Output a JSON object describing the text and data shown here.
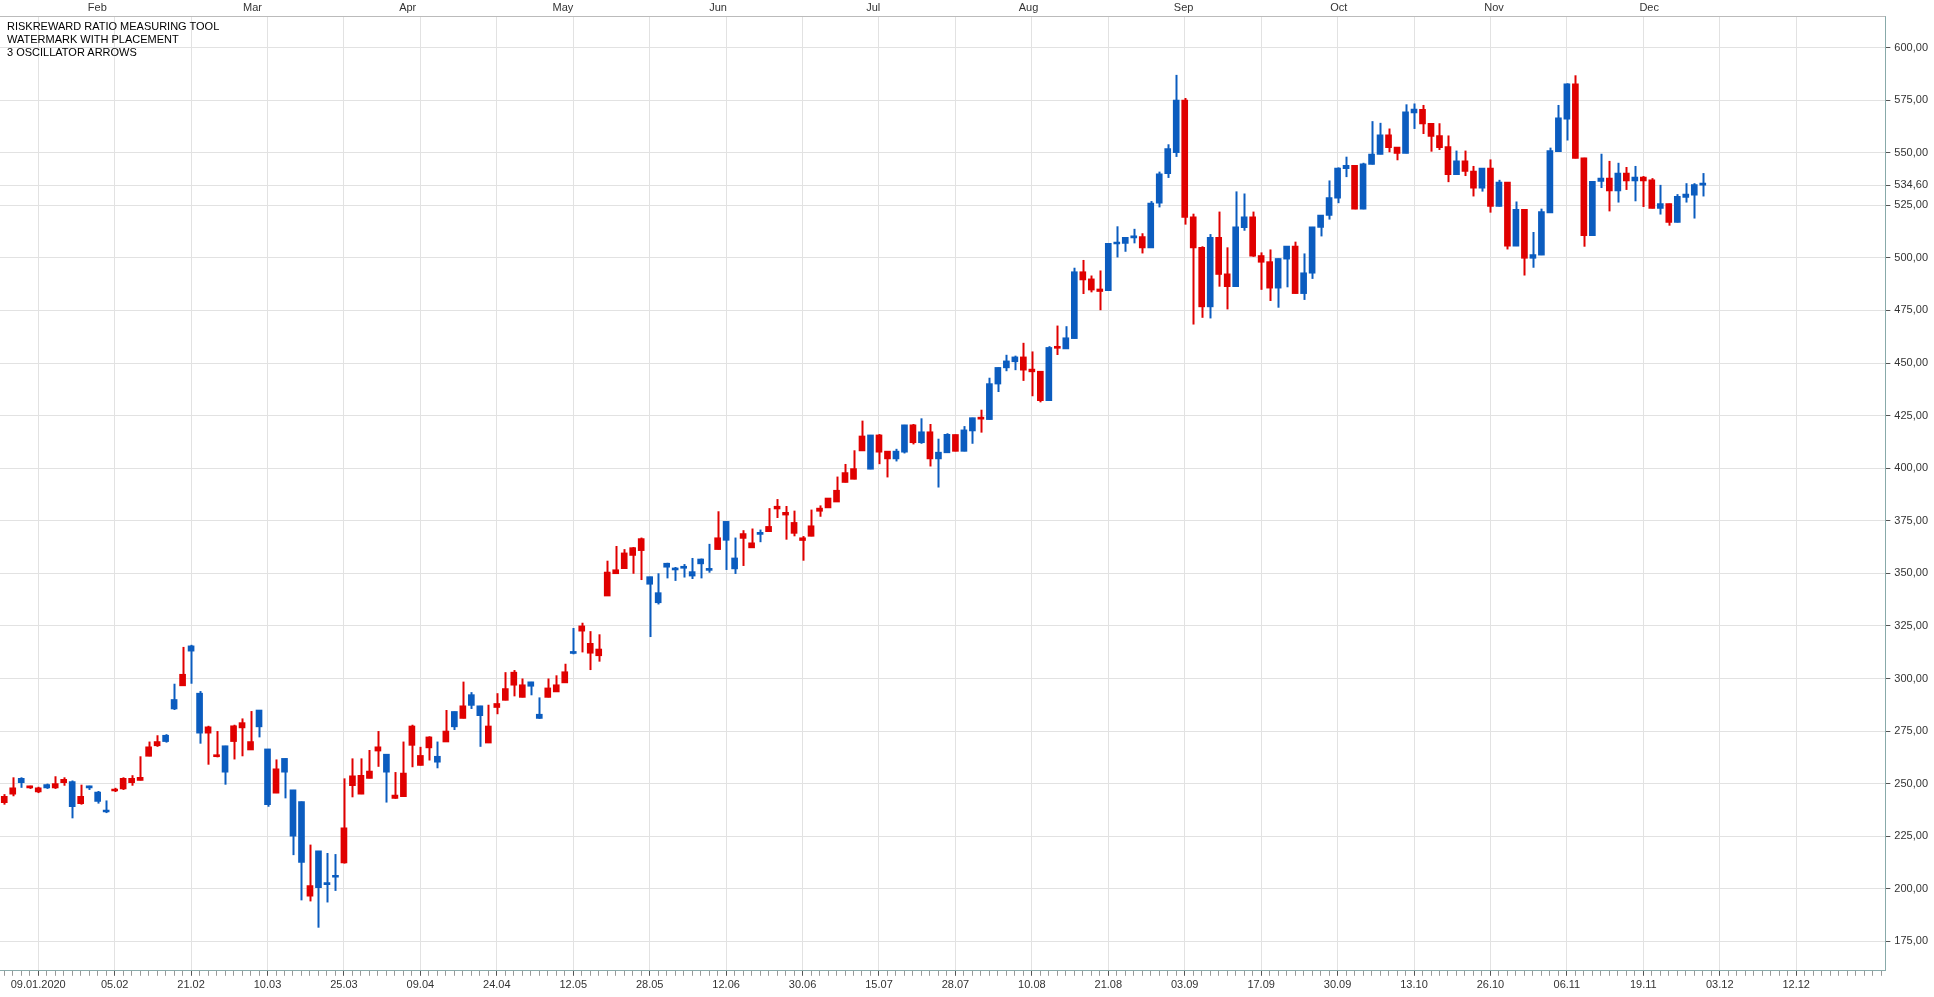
{
  "chart_data": {
    "type": "candlestick",
    "subtitle": "RISKREWARD RATIO MEASURING TOOL\nWATERMARK WITH PLACEMENT\n3 OSCILLATOR ARROWS",
    "annotations": [
      "Feb",
      "Mar",
      "Apr",
      "May",
      "Jun",
      "Jul",
      "Aug",
      "Sep",
      "Oct",
      "Nov",
      "Dec"
    ],
    "categories": [
      null,
      null,
      null,
      null,
      "09.01.2020",
      null,
      null,
      null,
      null,
      null,
      null,
      null,
      null,
      "05.02",
      null,
      null,
      null,
      null,
      null,
      null,
      null,
      null,
      "21.02",
      null,
      null,
      null,
      null,
      null,
      null,
      null,
      null,
      "10.03",
      null,
      null,
      null,
      null,
      null,
      null,
      null,
      null,
      "25.03",
      null,
      null,
      null,
      null,
      null,
      null,
      null,
      null,
      "09.04",
      null,
      null,
      null,
      null,
      null,
      null,
      null,
      null,
      "24.04",
      null,
      null,
      null,
      null,
      null,
      null,
      null,
      null,
      "12.05",
      null,
      null,
      null,
      null,
      null,
      null,
      null,
      null,
      "28.05",
      null,
      null,
      null,
      null,
      null,
      null,
      null,
      null,
      "12.06",
      null,
      null,
      null,
      null,
      null,
      null,
      null,
      null,
      "30.06",
      null,
      null,
      null,
      null,
      null,
      null,
      null,
      null,
      "15.07",
      null,
      null,
      null,
      null,
      null,
      null,
      null,
      null,
      "28.07",
      null,
      null,
      null,
      null,
      null,
      null,
      null,
      null,
      "10.08",
      null,
      null,
      null,
      null,
      null,
      null,
      null,
      null,
      "21.08",
      null,
      null,
      null,
      null,
      null,
      null,
      null,
      null,
      "03.09",
      null,
      null,
      null,
      null,
      null,
      null,
      null,
      null,
      "17.09",
      null,
      null,
      null,
      null,
      null,
      null,
      null,
      null,
      "30.09",
      null,
      null,
      null,
      null,
      null,
      null,
      null,
      null,
      "13.10",
      null,
      null,
      null,
      null,
      null,
      null,
      null,
      null,
      "26.10",
      null,
      null,
      null,
      null,
      null,
      null,
      null,
      null,
      "06.11",
      null,
      null,
      null,
      null,
      null,
      null,
      null,
      null,
      "19.11",
      null,
      null,
      null,
      null,
      null,
      null,
      null,
      null,
      "03.12",
      null,
      null,
      null,
      null,
      null,
      null,
      null,
      null,
      "12.12",
      null,
      null,
      null,
      null,
      null,
      null,
      null,
      null,
      null,
      null
    ],
    "ohlc": [
      [
        241,
        245,
        240,
        244
      ],
      [
        245,
        253,
        244,
        248
      ],
      [
        252.5,
        253,
        248,
        250.5
      ],
      [
        248,
        249,
        247.5,
        248.5
      ],
      [
        246,
        248.5,
        245.5,
        248
      ],
      [
        249.5,
        250,
        247.5,
        248
      ],
      [
        248,
        253.5,
        247.5,
        250
      ],
      [
        250.5,
        253,
        249,
        252
      ],
      [
        251,
        251.5,
        233.5,
        239
      ],
      [
        240.5,
        249.5,
        240,
        244
      ],
      [
        248.5,
        249,
        247,
        248
      ],
      [
        246,
        246.5,
        240.5,
        241.5
      ],
      [
        237,
        242,
        236,
        236.5
      ],
      [
        246.5,
        248,
        246,
        247
      ],
      [
        247.5,
        253,
        247,
        252.5
      ],
      [
        250.5,
        254,
        249,
        252.5
      ],
      [
        251.5,
        263,
        251.5,
        253
      ],
      [
        263,
        270,
        263,
        267.5
      ],
      [
        268,
        273,
        267.5,
        270
      ],
      [
        273,
        273.5,
        269.5,
        270
      ],
      [
        290,
        297.5,
        285,
        285.5
      ],
      [
        296.5,
        315,
        296.5,
        302
      ],
      [
        315.5,
        316,
        297.5,
        313
      ],
      [
        293,
        294,
        269,
        274
      ],
      [
        274,
        277.5,
        259,
        277
      ],
      [
        262.8,
        275,
        262.5,
        263.5
      ],
      [
        268,
        268,
        249.5,
        255.5
      ],
      [
        270,
        278,
        261.5,
        277.5
      ],
      [
        276.5,
        281,
        263,
        279
      ],
      [
        266,
        284.5,
        266,
        270
      ],
      [
        285,
        285,
        272,
        277
      ],
      [
        266.5,
        266.5,
        239,
        240
      ],
      [
        245.5,
        261.5,
        245.5,
        257
      ],
      [
        262,
        262,
        243,
        255.5
      ],
      [
        247,
        247,
        216,
        225
      ],
      [
        241.5,
        241.5,
        194.5,
        212.5
      ],
      [
        196.5,
        221,
        194,
        201.5
      ],
      [
        218,
        218,
        181.5,
        200.5
      ],
      [
        203,
        217,
        193.5,
        202
      ],
      [
        206,
        216.5,
        199,
        205.5
      ],
      [
        212.3,
        252.5,
        212,
        229
      ],
      [
        249,
        262,
        243.5,
        253.7
      ],
      [
        245,
        262,
        245,
        254
      ],
      [
        252.5,
        266,
        252.5,
        256
      ],
      [
        265.5,
        275,
        258,
        267.5
      ],
      [
        264,
        264,
        241,
        255.5
      ],
      [
        243,
        255.5,
        242.8,
        244.6
      ],
      [
        243.8,
        270,
        243.8,
        255
      ],
      [
        268.2,
        278,
        257.8,
        277.4
      ],
      [
        258.6,
        267.5,
        258.6,
        263.4
      ],
      [
        267,
        272.5,
        261,
        272.2
      ],
      [
        263,
        270,
        257.3,
        260.2
      ],
      [
        269.8,
        285,
        269.8,
        275
      ],
      [
        284.3,
        284.3,
        275.5,
        277
      ],
      [
        281,
        298.5,
        281,
        287
      ],
      [
        292.3,
        293.5,
        285.5,
        287.2
      ],
      [
        287,
        287,
        267.5,
        282.3
      ],
      [
        269.3,
        287.5,
        269.3,
        277.4
      ],
      [
        286.2,
        293,
        283,
        288.1
      ],
      [
        289.6,
        303,
        289.6,
        295.2
      ],
      [
        296.8,
        304,
        291.5,
        303
      ],
      [
        291,
        300,
        291,
        297
      ],
      [
        298.4,
        298.4,
        292,
        296.3
      ],
      [
        283,
        291,
        280.8,
        281
      ],
      [
        291,
        300,
        291,
        295.5
      ],
      [
        293.6,
        301.5,
        293.6,
        297
      ],
      [
        297.9,
        307,
        297.9,
        303.2
      ],
      [
        312.7,
        324,
        311.5,
        311.9
      ],
      [
        322.5,
        326.5,
        312.4,
        325
      ],
      [
        312,
        322.5,
        304,
        316.7
      ],
      [
        310.8,
        321,
        308,
        314
      ],
      [
        339.2,
        356,
        339.2,
        350.6
      ],
      [
        349.8,
        363,
        349.8,
        351.7
      ],
      [
        352.2,
        361.5,
        352.2,
        359.7
      ],
      [
        358.5,
        362.5,
        349.8,
        362.2
      ],
      [
        360.8,
        367,
        346.8,
        366.5
      ],
      [
        348.4,
        348.4,
        319.7,
        344.8
      ],
      [
        340.8,
        350,
        335.2,
        336
      ],
      [
        354.8,
        355,
        347.6,
        352.9
      ],
      [
        352.4,
        353,
        346.4,
        351.6
      ],
      [
        353,
        354.4,
        348,
        352.4
      ],
      [
        350.8,
        357.3,
        347.3,
        348.7
      ],
      [
        356.8,
        357,
        347.6,
        354.5
      ],
      [
        351.9,
        364,
        350.3,
        351.4
      ],
      [
        361.3,
        379.5,
        361.3,
        366.9
      ],
      [
        374.7,
        374.7,
        351.6,
        365.7
      ],
      [
        357.3,
        367,
        349.7,
        352.1
      ],
      [
        366.6,
        370.5,
        353.5,
        368.9
      ],
      [
        362.1,
        371.3,
        362.1,
        364.5
      ],
      [
        369.5,
        370.8,
        364.8,
        368.5
      ],
      [
        369.8,
        381,
        369.8,
        372.3
      ],
      [
        380.6,
        385.3,
        376.3,
        381.9
      ],
      [
        377.7,
        382,
        366,
        379
      ],
      [
        369,
        379.8,
        367.6,
        374.2
      ],
      [
        365.6,
        367.7,
        356,
        366.9
      ],
      [
        367.6,
        380.3,
        367.6,
        372.6
      ],
      [
        379.5,
        382.3,
        376.9,
        381
      ],
      [
        381.1,
        385.8,
        381.1,
        385.8
      ],
      [
        383.9,
        396,
        383.9,
        389.5
      ],
      [
        393.2,
        402,
        393.2,
        397.9
      ],
      [
        394.7,
        408.5,
        394.7,
        399.8
      ],
      [
        408.2,
        422.6,
        408.2,
        415.3
      ],
      [
        415.8,
        415.8,
        399.5,
        399.5
      ],
      [
        407.6,
        416.2,
        401.9,
        415.8
      ],
      [
        404.4,
        408.1,
        395.6,
        408.1
      ],
      [
        408.1,
        409.2,
        403.2,
        404.4
      ],
      [
        420.6,
        420.6,
        407,
        407.6
      ],
      [
        412.1,
        421,
        411.3,
        420.6
      ],
      [
        417.3,
        423.7,
        411.6,
        412.1
      ],
      [
        404.4,
        421,
        400.8,
        417.3
      ],
      [
        407.6,
        414,
        390.8,
        404.4
      ],
      [
        416.1,
        416.6,
        407.3,
        407.3
      ],
      [
        408,
        416,
        408,
        416
      ],
      [
        418.2,
        420,
        408,
        408
      ],
      [
        424,
        424,
        411.6,
        417.7
      ],
      [
        423.3,
        427.8,
        416.9,
        424.1
      ],
      [
        440.2,
        443,
        423.1,
        423.1
      ],
      [
        447.9,
        447.9,
        436.2,
        440
      ],
      [
        451,
        453.9,
        446.1,
        447.7
      ],
      [
        452.9,
        453.5,
        446.6,
        450.6
      ],
      [
        446.6,
        459.6,
        441.5,
        452.9
      ],
      [
        445.8,
        455.5,
        434.2,
        447.1
      ],
      [
        432.1,
        446.1,
        431.3,
        446.1
      ],
      [
        457.4,
        458,
        432.1,
        432.1
      ],
      [
        457,
        467.8,
        453.8,
        457.3
      ],
      [
        462,
        467.5,
        456.7,
        456.7
      ],
      [
        493.4,
        495.3,
        461.6,
        461.6
      ],
      [
        489.5,
        499,
        482.8,
        493.4
      ],
      [
        484.7,
        491.6,
        483.6,
        490
      ],
      [
        484,
        494,
        475.1,
        485.2
      ],
      [
        506.9,
        507,
        484.4,
        484.4
      ],
      [
        507.4,
        515,
        500.2,
        506.6
      ],
      [
        509.8,
        509.8,
        502.9,
        506.9
      ],
      [
        510.5,
        513.8,
        506.9,
        509.5
      ],
      [
        504.7,
        511.7,
        502.1,
        510.1
      ],
      [
        526,
        527,
        504.7,
        504.7
      ],
      [
        540,
        541,
        524,
        526
      ],
      [
        552,
        554,
        538,
        540
      ],
      [
        575,
        587,
        548,
        550
      ],
      [
        519.2,
        576,
        515.8,
        575
      ],
      [
        504.7,
        521,
        468.3,
        519.5
      ],
      [
        476.7,
        505.5,
        471.5,
        505
      ],
      [
        509.8,
        511.3,
        471.2,
        476.7
      ],
      [
        492.1,
        522,
        486.3,
        509.8
      ],
      [
        486.3,
        505,
        475.5,
        492.4
      ],
      [
        514.7,
        531.6,
        486.3,
        486.3
      ],
      [
        519.5,
        530.6,
        512.9,
        514.4
      ],
      [
        500.8,
        522,
        500.5,
        519.5
      ],
      [
        497.9,
        502.6,
        484.8,
        501.1
      ],
      [
        485.6,
        504,
        479.5,
        498.2
      ],
      [
        499.7,
        499.7,
        476.3,
        485.6
      ],
      [
        505.6,
        505.6,
        486,
        499.4
      ],
      [
        483,
        507.7,
        483,
        505.6
      ],
      [
        492.9,
        502.1,
        480,
        483
      ],
      [
        514.7,
        514.7,
        490,
        492.7
      ],
      [
        520.3,
        520.3,
        510.2,
        514.5
      ],
      [
        528.7,
        536.8,
        518.2,
        520.2
      ],
      [
        542.7,
        543,
        526,
        528.4
      ],
      [
        544,
        548.1,
        538.4,
        542.4
      ],
      [
        523.1,
        544,
        523.1,
        544
      ],
      [
        544.7,
        545.2,
        523.1,
        523.1
      ],
      [
        549.4,
        565,
        544.4,
        544.4
      ],
      [
        558.5,
        564.2,
        549.2,
        549.2
      ],
      [
        552.4,
        561.5,
        550.2,
        558.5
      ],
      [
        549.7,
        552.7,
        546.4,
        552.7
      ],
      [
        569.4,
        573,
        549.7,
        549.7
      ],
      [
        570.8,
        573.4,
        561.3,
        568.9
      ],
      [
        563.7,
        572.7,
        558.9,
        570.6
      ],
      [
        557.7,
        564,
        550.5,
        564
      ],
      [
        552.4,
        564,
        551.3,
        558.2
      ],
      [
        539.5,
        558.2,
        536,
        552.9
      ],
      [
        546.1,
        551,
        539.5,
        539.5
      ],
      [
        541.1,
        551,
        538.9,
        546.1
      ],
      [
        533.1,
        543.7,
        529.2,
        541.3
      ],
      [
        542.7,
        542.7,
        531.5,
        533.1
      ],
      [
        524.4,
        546.8,
        521.5,
        542.7
      ],
      [
        536,
        537.1,
        524.4,
        524.4
      ],
      [
        505.6,
        536,
        504,
        536
      ],
      [
        523.1,
        526.8,
        505.6,
        505.6
      ],
      [
        499.8,
        523.1,
        491.6,
        523.1
      ],
      [
        501.6,
        512.3,
        495.3,
        499.8
      ],
      [
        522,
        523.4,
        501.3,
        501.3
      ],
      [
        551,
        552.4,
        521.4,
        521.4
      ],
      [
        566.6,
        572.7,
        550.5,
        550.5
      ],
      [
        582.7,
        583,
        555.8,
        566
      ],
      [
        547.3,
        586.8,
        547.3,
        582.7
      ],
      [
        510.5,
        547.6,
        505.3,
        547.6
      ],
      [
        536.4,
        536.4,
        510.5,
        510.5
      ],
      [
        537.9,
        549.5,
        533.2,
        536.3
      ],
      [
        531.8,
        546.1,
        522.1,
        537.9
      ],
      [
        540.3,
        545.2,
        526.3,
        531.8
      ],
      [
        536.6,
        543.2,
        532.3,
        540.3
      ],
      [
        538.4,
        543.7,
        526.9,
        536.6
      ],
      [
        536.6,
        538.9,
        524.2,
        538.4
      ],
      [
        523.5,
        537.9,
        523.5,
        537.1
      ],
      [
        525.8,
        534.7,
        520.6,
        523.5
      ],
      [
        516.8,
        525.8,
        515.3,
        525.8
      ],
      [
        529.2,
        530.3,
        516.8,
        516.8
      ],
      [
        530.3,
        535.5,
        526.3,
        528.7
      ],
      [
        534.8,
        535.5,
        518.7,
        529.8
      ],
      [
        534.8,
        540.3,
        529.2,
        534.6
      ],
      null,
      null,
      null,
      null,
      null,
      null,
      null,
      null,
      null,
      null,
      null,
      null,
      null,
      null,
      null,
      null,
      null,
      null,
      null,
      null,
      null
    ],
    "colors": [
      "#e00000",
      "#e00000",
      "#0b5cbf",
      "#e00000",
      "#e00000",
      "#0b5cbf",
      "#e00000",
      "#e00000",
      "#0b5cbf",
      "#e00000",
      "#0b5cbf",
      "#0b5cbf",
      "#0b5cbf",
      "#e00000",
      "#e00000",
      "#e00000",
      "#e00000",
      "#e00000",
      "#e00000",
      "#0b5cbf",
      "#0b5cbf",
      "#e00000",
      "#0b5cbf",
      "#0b5cbf",
      "#e00000",
      "#e00000",
      "#0b5cbf",
      "#e00000",
      "#e00000",
      "#e00000",
      "#0b5cbf",
      "#0b5cbf",
      "#e00000",
      "#0b5cbf",
      "#0b5cbf",
      "#0b5cbf",
      "#e00000",
      "#0b5cbf",
      "#0b5cbf",
      "#0b5cbf",
      "#e00000",
      "#e00000",
      "#e00000",
      "#e00000",
      "#e00000",
      "#0b5cbf",
      "#e00000",
      "#e00000",
      "#e00000",
      "#e00000",
      "#e00000",
      "#0b5cbf",
      "#e00000",
      "#0b5cbf",
      "#e00000",
      "#0b5cbf",
      "#0b5cbf",
      "#e00000",
      "#e00000",
      "#e00000",
      "#e00000",
      "#e00000",
      "#0b5cbf",
      "#0b5cbf",
      "#e00000",
      "#e00000",
      "#e00000",
      "#0b5cbf",
      "#e00000",
      "#e00000",
      "#e00000",
      "#e00000",
      "#e00000",
      "#e00000",
      "#e00000",
      "#e00000",
      "#0b5cbf",
      "#0b5cbf",
      "#0b5cbf",
      "#0b5cbf",
      "#0b5cbf",
      "#0b5cbf",
      "#0b5cbf",
      "#0b5cbf",
      "#e00000",
      "#0b5cbf",
      "#0b5cbf",
      "#e00000",
      "#e00000",
      "#0b5cbf",
      "#e00000",
      "#e00000",
      "#e00000",
      "#e00000",
      "#e00000",
      "#e00000",
      "#e00000",
      "#e00000",
      "#e00000",
      "#e00000",
      "#e00000",
      "#e00000",
      "#0b5cbf",
      "#e00000",
      "#e00000",
      "#0b5cbf",
      "#0b5cbf",
      "#e00000",
      "#0b5cbf",
      "#e00000",
      "#0b5cbf",
      "#0b5cbf",
      "#e00000",
      "#0b5cbf",
      "#0b5cbf",
      "#e00000",
      "#0b5cbf",
      "#0b5cbf",
      "#0b5cbf",
      "#0b5cbf",
      "#e00000",
      "#e00000",
      "#e00000",
      "#0b5cbf",
      "#e00000",
      "#0b5cbf",
      "#0b5cbf",
      "#e00000",
      "#e00000",
      "#e00000",
      "#0b5cbf",
      "#0b5cbf",
      "#0b5cbf",
      "#0b5cbf",
      "#e00000",
      "#0b5cbf",
      "#0b5cbf",
      "#0b5cbf",
      "#0b5cbf",
      "#e00000",
      "#e00000",
      "#e00000",
      "#0b5cbf",
      "#e00000",
      "#e00000",
      "#0b5cbf",
      "#0b5cbf",
      "#e00000",
      "#e00000",
      "#e00000",
      "#0b5cbf",
      "#0b5cbf",
      "#e00000",
      "#0b5cbf",
      "#0b5cbf",
      "#0b5cbf",
      "#0b5cbf",
      "#0b5cbf",
      "#0b5cbf",
      "#e00000",
      "#0b5cbf",
      "#0b5cbf",
      "#0b5cbf",
      "#e00000",
      "#e00000",
      "#0b5cbf",
      "#0b5cbf",
      "#e00000",
      "#e00000",
      "#e00000",
      "#e00000",
      "#0b5cbf",
      "#e00000",
      "#e00000",
      "#0b5cbf",
      "#e00000",
      "#0b5cbf",
      "#e00000",
      "#0b5cbf",
      "#e00000",
      "#0b5cbf",
      "#0b5cbf",
      "#0b5cbf",
      "#0b5cbf",
      "#0b5cbf",
      "#e00000",
      "#e00000",
      "#0b5cbf",
      "#0b5cbf",
      "#e00000",
      "#0b5cbf",
      "#e00000",
      "#0b5cbf",
      "#e00000",
      "#e00000",
      "#0b5cbf",
      "#e00000",
      "#0b5cbf",
      "#0b5cbf",
      "#0b5cbf",
      "#0b5cbf",
      null,
      null,
      null,
      null,
      null,
      null,
      null,
      null,
      null,
      null,
      null,
      null,
      null,
      null,
      null,
      null,
      null,
      null,
      null,
      null,
      null
    ],
    "ylim": [
      161,
      615
    ],
    "yticks": [
      {
        "value": 175,
        "label": "175,00"
      },
      {
        "value": 200,
        "label": "200,00"
      },
      {
        "value": 225,
        "label": "225,00"
      },
      {
        "value": 250,
        "label": "250,00"
      },
      {
        "value": 275,
        "label": "275,00"
      },
      {
        "value": 300,
        "label": "300,00"
      },
      {
        "value": 325,
        "label": "325,00"
      },
      {
        "value": 350,
        "label": "350,00"
      },
      {
        "value": 375,
        "label": "375,00"
      },
      {
        "value": 400,
        "label": "400,00"
      },
      {
        "value": 425,
        "label": "425,00"
      },
      {
        "value": 450,
        "label": "450,00"
      },
      {
        "value": 475,
        "label": "475,00"
      },
      {
        "value": 500,
        "label": "500,00"
      },
      {
        "value": 525,
        "label": "525,00"
      },
      {
        "value": 550,
        "label": "550,00"
      },
      {
        "value": 575,
        "label": "575,00"
      },
      {
        "value": 600,
        "label": "600,00"
      },
      {
        "value": 534.6,
        "label": "534,60"
      }
    ],
    "grid": true,
    "legend": false
  }
}
